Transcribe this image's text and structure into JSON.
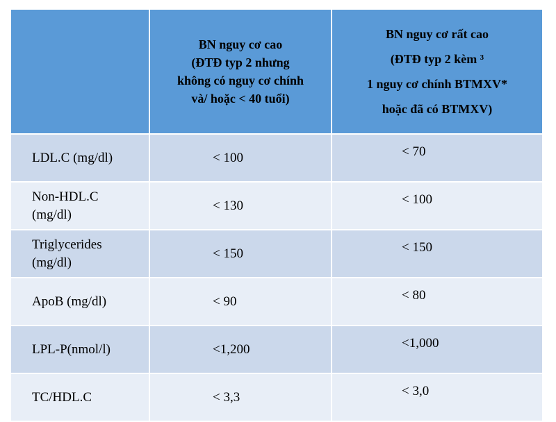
{
  "headers": [
    {
      "lines": [
        ""
      ]
    },
    {
      "lines": [
        "BN nguy cơ cao",
        "(ĐTĐ typ 2 nhưng",
        "không có nguy cơ chính",
        "và/ hoặc < 40 tuổi)"
      ]
    },
    {
      "lines": [
        "BN nguy cơ rất cao",
        "(ĐTĐ typ 2 kèm ³",
        "1 nguy cơ chính BTMXV*",
        "hoặc đã có BTMXV)"
      ]
    }
  ],
  "rows": [
    {
      "label_lines": [
        "LDL.C (mg/dl)"
      ],
      "high": "< 100",
      "very_high": "< 70"
    },
    {
      "label_lines": [
        "Non-HDL.C",
        "(mg/dl)"
      ],
      "high": "< 130",
      "very_high": "< 100"
    },
    {
      "label_lines": [
        "Triglycerides",
        "(mg/dl)"
      ],
      "high": "< 150",
      "very_high": "< 150"
    },
    {
      "label_lines": [
        "ApoB (mg/dl)"
      ],
      "high": "< 90",
      "very_high": "< 80"
    },
    {
      "label_lines": [
        "LPL-P(nmol/l)"
      ],
      "high": "<1,200",
      "very_high": "<1,000"
    },
    {
      "label_lines": [
        "TC/HDL.C"
      ],
      "high": "< 3,3",
      "very_high": "< 3,0"
    }
  ]
}
